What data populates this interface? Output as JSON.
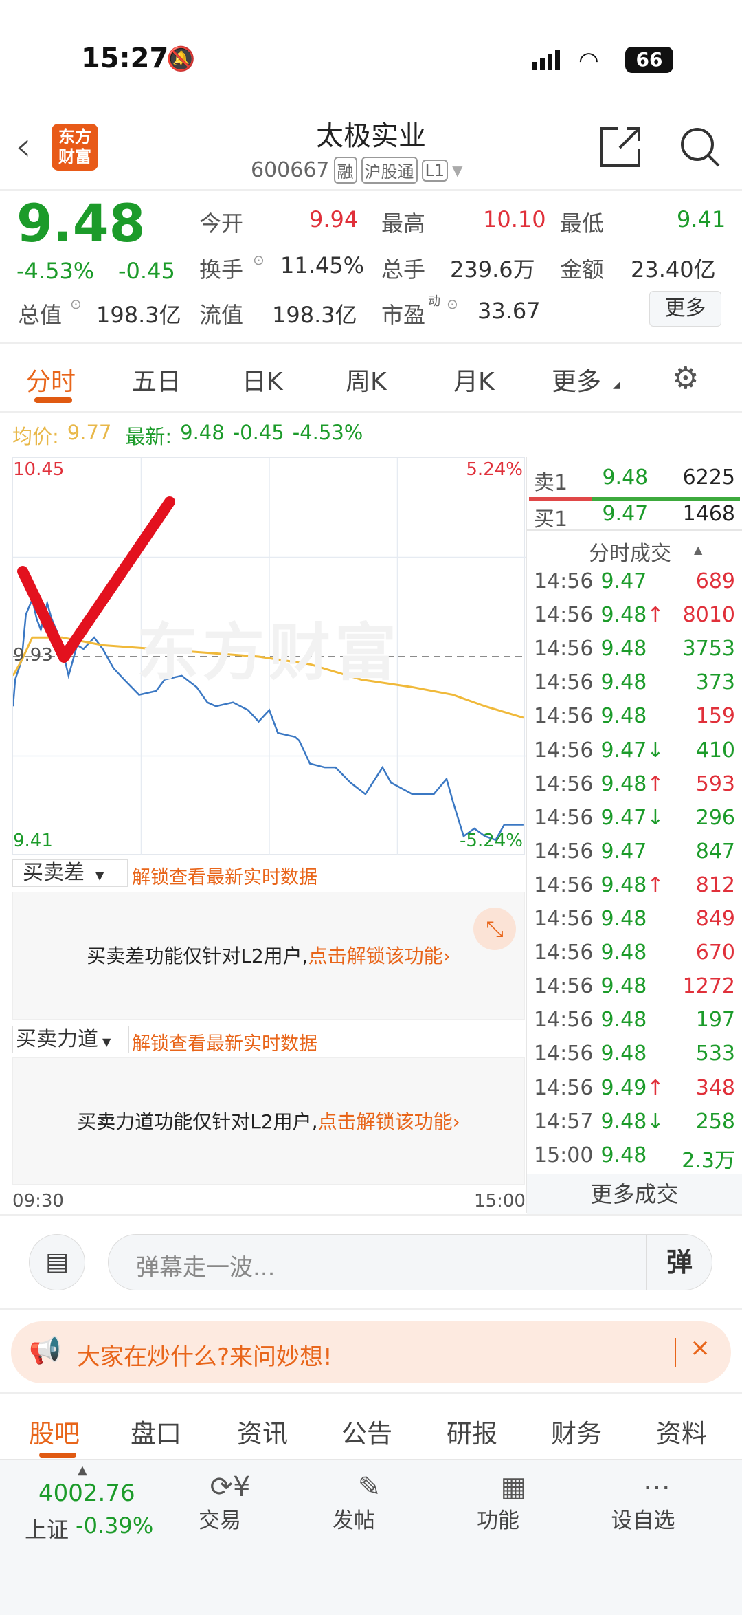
{
  "status_bar": {
    "time": "15:27",
    "battery": "66"
  },
  "header": {
    "logo": "东方财富",
    "title": "太极实业",
    "code": "600667",
    "tags": [
      "融",
      "沪股通",
      "L1"
    ]
  },
  "quote": {
    "price": "9.48",
    "change_pct": "-4.53%",
    "change": "-0.45",
    "fields": [
      {
        "label": "今开",
        "value": "9.94",
        "color": "red"
      },
      {
        "label": "最高",
        "value": "10.10",
        "color": "red"
      },
      {
        "label": "最低",
        "value": "9.41",
        "color": "green"
      },
      {
        "label": "换手",
        "value": "11.45%"
      },
      {
        "label": "总手",
        "value": "239.6万"
      },
      {
        "label": "金额",
        "value": "23.40亿"
      },
      {
        "label": "总值",
        "value": "198.3亿"
      },
      {
        "label": "流值",
        "value": "198.3亿"
      },
      {
        "label": "市盈",
        "sup": "动",
        "value": "33.67"
      }
    ],
    "more_button": "更多"
  },
  "chart_tabs": [
    "分时",
    "五日",
    "日K",
    "周K",
    "月K",
    "更多"
  ],
  "active_tab": "分时",
  "summary": {
    "avg_label": "均价:",
    "avg": "9.77",
    "latest_label": "最新:",
    "latest": "9.48",
    "change": "-0.45",
    "pct": "-4.53%"
  },
  "chart_data": {
    "type": "line",
    "watermark": "东方财富",
    "y_max_label": "10.45",
    "y_min_label": "9.41",
    "ref_label": "9.93",
    "pct_max_label": "5.24%",
    "pct_min_label": "-5.24%",
    "ylim": [
      9.41,
      10.45
    ],
    "prev_close": 9.93,
    "x_labels": [
      "09:30",
      "15:00"
    ],
    "xlim": [
      0,
      240
    ],
    "series": [
      {
        "color": "#3b78c3",
        "x": [
          0,
          1,
          4,
          6,
          9,
          11,
          13,
          16,
          18,
          21,
          23,
          26,
          28,
          30,
          33,
          38,
          42,
          47,
          52,
          59,
          67,
          71,
          79,
          86,
          91,
          95,
          103,
          110,
          115,
          120,
          124,
          132,
          134,
          139,
          146,
          151,
          158,
          165,
          173,
          177,
          187,
          197,
          203,
          206,
          211,
          216,
          221,
          226,
          230,
          235,
          239
        ],
        "y": [
          9.8,
          9.87,
          9.92,
          10.04,
          10.08,
          10.03,
          10.0,
          10.07,
          10.03,
          9.99,
          9.95,
          9.88,
          9.92,
          9.96,
          9.95,
          9.98,
          9.95,
          9.9,
          9.87,
          9.83,
          9.84,
          9.87,
          9.88,
          9.85,
          9.81,
          9.8,
          9.81,
          9.79,
          9.76,
          9.79,
          9.73,
          9.72,
          9.71,
          9.65,
          9.64,
          9.64,
          9.6,
          9.57,
          9.64,
          9.6,
          9.57,
          9.57,
          9.61,
          9.55,
          9.46,
          9.48,
          9.46,
          9.45,
          9.49,
          9.49,
          9.49
        ]
      },
      {
        "color": "#f0b93a",
        "x": [
          0,
          4,
          9,
          23,
          42,
          91,
          115,
          139,
          163,
          187,
          206,
          221,
          239
        ],
        "y": [
          9.88,
          9.92,
          9.98,
          9.98,
          9.96,
          9.94,
          9.93,
          9.91,
          9.87,
          9.85,
          9.83,
          9.8,
          9.77
        ]
      }
    ]
  },
  "order_book": {
    "sell": {
      "label": "卖1",
      "price": "9.48",
      "vol": "6225"
    },
    "buy": {
      "label": "买1",
      "price": "9.47",
      "vol": "1468"
    },
    "sell_ratio": 0.3
  },
  "trades": {
    "title": "分时成交",
    "rows": [
      {
        "t": "14:56",
        "p": "9.47",
        "a": "",
        "v": "689",
        "vc": "r"
      },
      {
        "t": "14:56",
        "p": "9.48",
        "a": "↑",
        "v": "8010",
        "vc": "r"
      },
      {
        "t": "14:56",
        "p": "9.48",
        "a": "",
        "v": "3753",
        "vc": "g"
      },
      {
        "t": "14:56",
        "p": "9.48",
        "a": "",
        "v": "373",
        "vc": "g"
      },
      {
        "t": "14:56",
        "p": "9.48",
        "a": "",
        "v": "159",
        "vc": "r"
      },
      {
        "t": "14:56",
        "p": "9.47",
        "a": "↓",
        "v": "410",
        "vc": "g"
      },
      {
        "t": "14:56",
        "p": "9.48",
        "a": "↑",
        "v": "593",
        "vc": "r"
      },
      {
        "t": "14:56",
        "p": "9.47",
        "a": "↓",
        "v": "296",
        "vc": "g"
      },
      {
        "t": "14:56",
        "p": "9.47",
        "a": "",
        "v": "847",
        "vc": "g"
      },
      {
        "t": "14:56",
        "p": "9.48",
        "a": "↑",
        "v": "812",
        "vc": "r"
      },
      {
        "t": "14:56",
        "p": "9.48",
        "a": "",
        "v": "849",
        "vc": "r"
      },
      {
        "t": "14:56",
        "p": "9.48",
        "a": "",
        "v": "670",
        "vc": "r"
      },
      {
        "t": "14:56",
        "p": "9.48",
        "a": "",
        "v": "1272",
        "vc": "r"
      },
      {
        "t": "14:56",
        "p": "9.48",
        "a": "",
        "v": "197",
        "vc": "g"
      },
      {
        "t": "14:56",
        "p": "9.48",
        "a": "",
        "v": "533",
        "vc": "g"
      },
      {
        "t": "14:56",
        "p": "9.49",
        "a": "↑",
        "v": "348",
        "vc": "r"
      },
      {
        "t": "14:57",
        "p": "9.48",
        "a": "↓",
        "v": "258",
        "vc": "g"
      },
      {
        "t": "15:00",
        "p": "9.48",
        "a": "",
        "v": "2.3万",
        "vc": "g"
      }
    ],
    "more": "更多成交"
  },
  "spread": {
    "label": "买卖差",
    "unlock": "解锁查看最新实时数据",
    "msg": "买卖差功能仅针对L2用户,",
    "cta": "点击解锁该功能›"
  },
  "force": {
    "label": "买卖力道",
    "unlock": "解锁查看最新实时数据",
    "msg": "买卖力道功能仅针对L2用户,",
    "cta": "点击解锁该功能›"
  },
  "danmu": {
    "placeholder": "弹幕走一波...",
    "send": "弹"
  },
  "banner": {
    "text": "大家在炒什么?来问妙想!"
  },
  "bottom_tabs": [
    "股吧",
    "盘口",
    "资讯",
    "公告",
    "研报",
    "财务",
    "资料"
  ],
  "bottom_nav": {
    "index_value": "4002.76",
    "index_name": "上证",
    "index_pct": "-0.39%",
    "items": [
      "交易",
      "发帖",
      "功能",
      "设自选"
    ]
  }
}
